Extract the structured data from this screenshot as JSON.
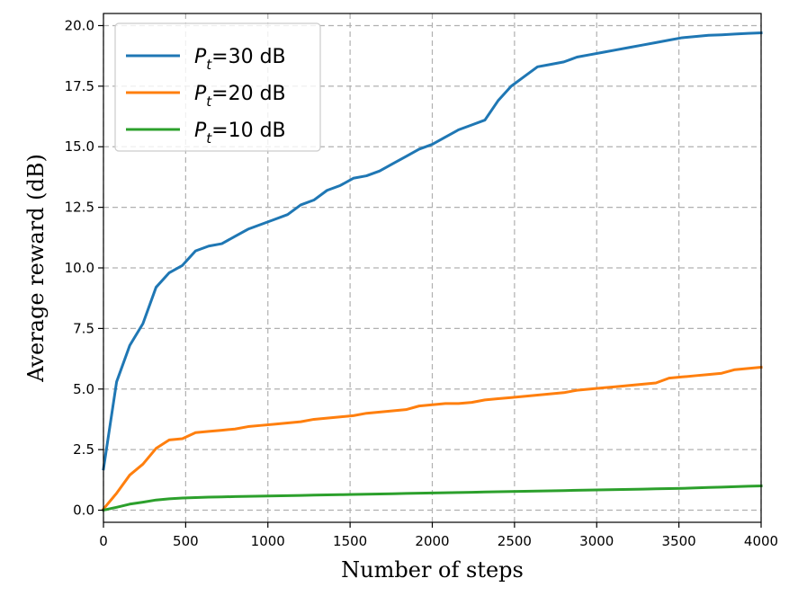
{
  "chart_data": {
    "type": "line",
    "xlabel": "Number of steps",
    "ylabel": "Average reward (dB)",
    "xlim": [
      0,
      4000
    ],
    "ylim": [
      -0.5,
      20.5
    ],
    "xticks": [
      0,
      500,
      1000,
      1500,
      2000,
      2500,
      3000,
      3500,
      4000
    ],
    "yticks": [
      0.0,
      2.5,
      5.0,
      7.5,
      10.0,
      12.5,
      15.0,
      17.5,
      20.0
    ],
    "ytick_labels": [
      "0.0",
      "2.5",
      "5.0",
      "7.5",
      "10.0",
      "12.5",
      "15.0",
      "17.5",
      "20.0"
    ],
    "grid": true,
    "legend_position": "top-left",
    "x": [
      0,
      80,
      160,
      240,
      320,
      400,
      480,
      560,
      640,
      720,
      800,
      880,
      960,
      1040,
      1120,
      1200,
      1280,
      1360,
      1440,
      1520,
      1600,
      1680,
      1760,
      1840,
      1920,
      2000,
      2080,
      2160,
      2240,
      2320,
      2400,
      2480,
      2560,
      2640,
      2720,
      2800,
      2880,
      2960,
      3040,
      3120,
      3200,
      3280,
      3360,
      3440,
      3520,
      3600,
      3680,
      3760,
      3840,
      3920,
      4000
    ],
    "series": [
      {
        "name": "$P_t$=30 dB",
        "legend_base": "P",
        "legend_sub": "t",
        "legend_suffix": "=30 dB",
        "color": "#1f77b4",
        "values": [
          1.7,
          5.3,
          6.8,
          7.7,
          9.2,
          9.8,
          10.1,
          10.7,
          10.9,
          11.0,
          11.3,
          11.6,
          11.8,
          12.0,
          12.2,
          12.6,
          12.8,
          13.2,
          13.4,
          13.7,
          13.8,
          14.0,
          14.3,
          14.6,
          14.9,
          15.1,
          15.4,
          15.7,
          15.9,
          16.1,
          16.9,
          17.5,
          17.9,
          18.3,
          18.4,
          18.5,
          18.7,
          18.8,
          18.9,
          19.0,
          19.1,
          19.2,
          19.3,
          19.4,
          19.5,
          19.55,
          19.6,
          19.62,
          19.65,
          19.68,
          19.7
        ]
      },
      {
        "name": "$P_t$=20 dB",
        "legend_base": "P",
        "legend_sub": "t",
        "legend_suffix": "=20 dB",
        "color": "#ff7f0e",
        "values": [
          0.05,
          0.7,
          1.45,
          1.9,
          2.55,
          2.9,
          2.95,
          3.2,
          3.25,
          3.3,
          3.35,
          3.45,
          3.5,
          3.55,
          3.6,
          3.65,
          3.75,
          3.8,
          3.85,
          3.9,
          4.0,
          4.05,
          4.1,
          4.15,
          4.3,
          4.35,
          4.4,
          4.4,
          4.45,
          4.55,
          4.6,
          4.65,
          4.7,
          4.75,
          4.8,
          4.85,
          4.95,
          5.0,
          5.05,
          5.1,
          5.15,
          5.2,
          5.25,
          5.45,
          5.5,
          5.55,
          5.6,
          5.65,
          5.8,
          5.85,
          5.9
        ]
      },
      {
        "name": "$P_t$=10 dB",
        "legend_base": "P",
        "legend_sub": "t",
        "legend_suffix": "=10 dB",
        "color": "#2ca02c",
        "values": [
          0.0,
          0.12,
          0.25,
          0.33,
          0.42,
          0.47,
          0.5,
          0.52,
          0.54,
          0.55,
          0.56,
          0.57,
          0.58,
          0.59,
          0.6,
          0.61,
          0.62,
          0.63,
          0.64,
          0.65,
          0.66,
          0.67,
          0.68,
          0.69,
          0.7,
          0.71,
          0.72,
          0.73,
          0.74,
          0.75,
          0.76,
          0.77,
          0.78,
          0.79,
          0.8,
          0.81,
          0.82,
          0.83,
          0.84,
          0.85,
          0.86,
          0.87,
          0.88,
          0.89,
          0.9,
          0.92,
          0.94,
          0.95,
          0.97,
          0.99,
          1.0
        ]
      }
    ]
  }
}
